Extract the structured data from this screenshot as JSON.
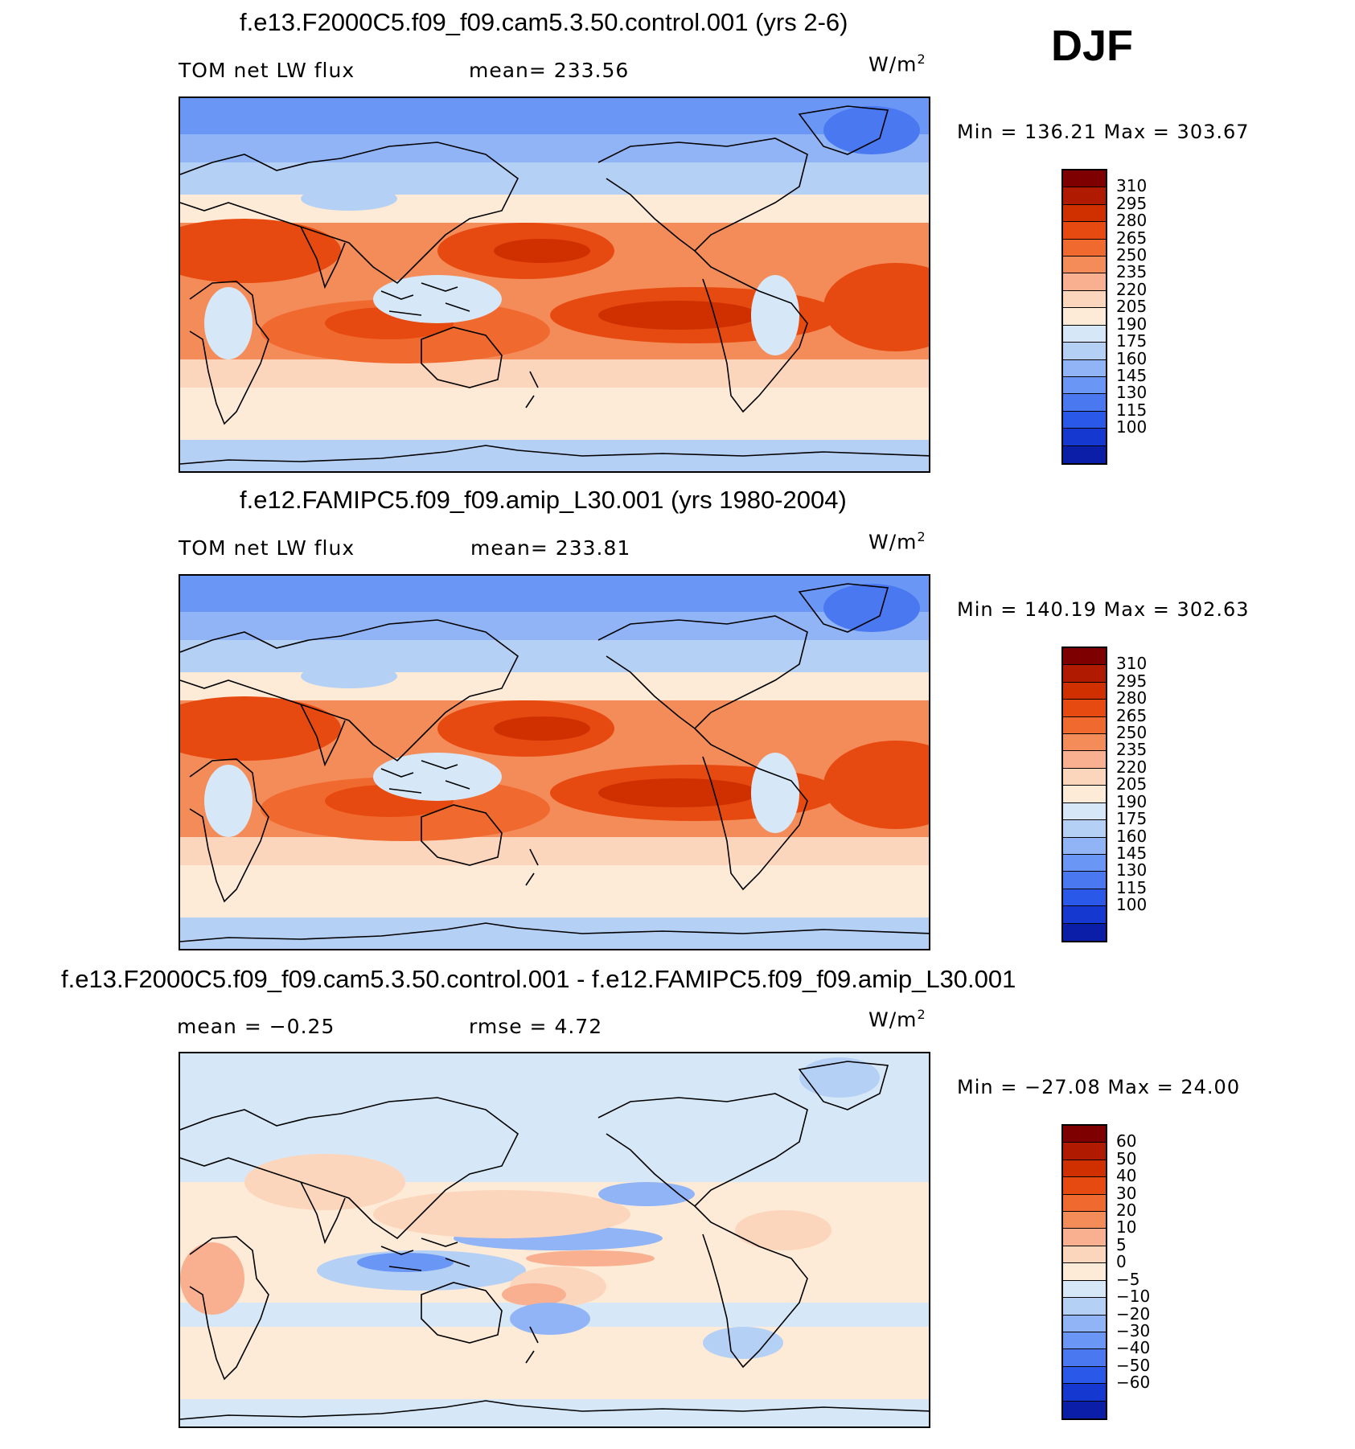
{
  "season": "DJF",
  "panels": [
    {
      "title": "f.e13.F2000C5.f09_f09.cam5.3.50.control.001 (yrs 2-6)",
      "variable": "TOM net LW flux",
      "stat": "mean=  233.56",
      "units": "W/m",
      "units_exp": "2",
      "minmax": "Min  =  136.21  Max  =  303.67",
      "colorbar_id": "abs",
      "field": "abs"
    },
    {
      "title": "f.e12.FAMIPC5.f09_f09.amip_L30.001 (yrs 1980-2004)",
      "variable": "TOM net LW flux",
      "stat": "mean=  233.81",
      "units": "W/m",
      "units_exp": "2",
      "minmax": "Min  =  140.19  Max  =  302.63",
      "colorbar_id": "abs",
      "field": "abs"
    },
    {
      "title": "f.e13.F2000C5.f09_f09.cam5.3.50.control.001 - f.e12.FAMIPC5.f09_f09.amip_L30.001",
      "variable": "mean  =    −0.25",
      "stat": "rmse  =     4.72",
      "units": "W/m",
      "units_exp": "2",
      "minmax": "Min  =  −27.08  Max  =    24.00",
      "colorbar_id": "diff",
      "field": "diff"
    }
  ],
  "colorbars": {
    "abs": {
      "ticks": [
        "310",
        "295",
        "280",
        "265",
        "250",
        "235",
        "220",
        "205",
        "190",
        "175",
        "160",
        "145",
        "130",
        "115",
        "100"
      ],
      "colors": [
        "#7f0000",
        "#b01a00",
        "#d03000",
        "#e64a10",
        "#f06a30",
        "#f48c5a",
        "#f9b090",
        "#fcd6bc",
        "#fdebd8",
        "#d6e8f8",
        "#b4d0f5",
        "#90b4f5",
        "#6a96f5",
        "#4a78f0",
        "#2a58e8",
        "#1438d0",
        "#0a1ea8"
      ]
    },
    "diff": {
      "ticks": [
        "60",
        "50",
        "40",
        "30",
        "20",
        "10",
        "5",
        "0",
        "−5",
        "−10",
        "−20",
        "−30",
        "−40",
        "−50",
        "−60"
      ],
      "colors": [
        "#7f0000",
        "#b01a00",
        "#d03000",
        "#e64a10",
        "#f06a30",
        "#f48c5a",
        "#f9b090",
        "#fcd6bc",
        "#fdebd8",
        "#d6e8f8",
        "#b4d0f5",
        "#90b4f5",
        "#6a96f5",
        "#4a78f0",
        "#2a58e8",
        "#1438d0",
        "#0a1ea8"
      ]
    }
  }
}
